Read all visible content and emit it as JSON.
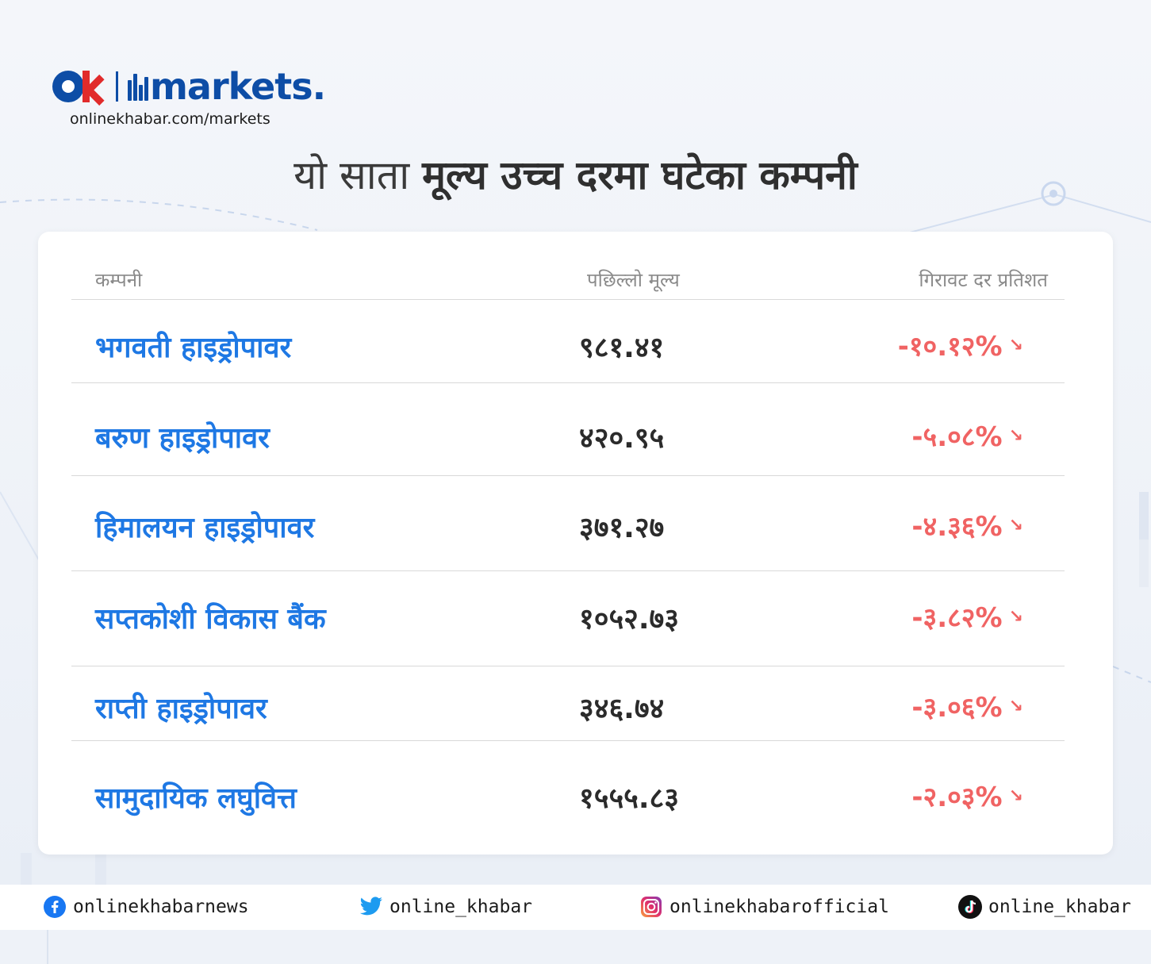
{
  "brand": {
    "name": "markets.",
    "url": "onlinekhabar.com/markets"
  },
  "headline": {
    "light": "यो साता",
    "bold": "मूल्य उच्च दरमा घटेका कम्पनी"
  },
  "table": {
    "headers": [
      "कम्पनी",
      "पछिल्लो मूल्य",
      "गिरावट दर प्रतिशत"
    ],
    "rows": [
      {
        "company": "भगवती हाइड्रोपावर",
        "price": "९८१.४१",
        "change": "-१०.१२%"
      },
      {
        "company": "बरुण हाइड्रोपावर",
        "price": "४२०.९५",
        "change": "-५.०८%"
      },
      {
        "company": "हिमालयन हाइड्रोपावर",
        "price": "३७१.२७",
        "change": "-४.३६%"
      },
      {
        "company": "सप्तकोशी विकास बैंक",
        "price": "१०५२.७३",
        "change": "-३.८२%"
      },
      {
        "company": "राप्ती हाइड्रोपावर",
        "price": "३४६.७४",
        "change": "-३.०६%"
      },
      {
        "company": "सामुदायिक लघुवित्त",
        "price": "१५५५.८३",
        "change": "-२.०३%"
      }
    ]
  },
  "social": {
    "facebook": "onlinekhabarnews",
    "twitter": "online_khabar",
    "instagram": "onlinekhabarofficial",
    "tiktok": "online_khabar"
  },
  "colors": {
    "brand_blue": "#0d4da6",
    "brand_red": "#e12b2b",
    "company_blue": "#1e78e4",
    "decline_red": "#f06363"
  }
}
